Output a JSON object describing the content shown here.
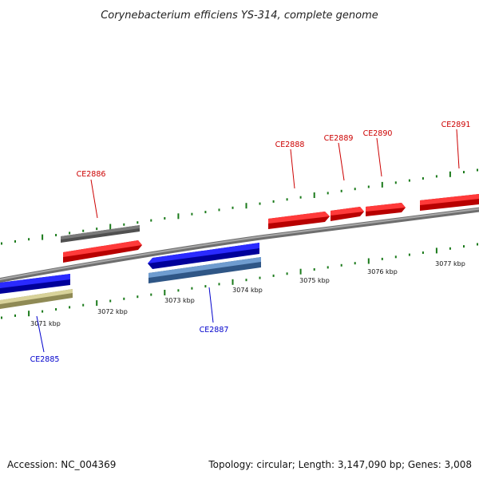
{
  "title": "Corynebacterium efficiens YS-314, complete genome",
  "footer": {
    "accession": "Accession: NC_004369",
    "summary": "Topology: circular; Length: 3,147,090 bp; Genes: 3,008"
  },
  "colors": {
    "backbone": "#808080",
    "tick": "#1a7a1a",
    "forward_label": "#cc0000",
    "reverse_label": "#0000cc",
    "red": "#e81010",
    "grey": "#6e6e6e",
    "blue": "#1010e0",
    "steelblue": "#4f7fb6",
    "khaki": "#c2bc80"
  },
  "kbp_labels": [
    "3071 kbp",
    "3072 kbp",
    "3073 kbp",
    "3074 kbp",
    "3075 kbp",
    "3076 kbp",
    "3077 kbp"
  ],
  "forward_labels": [
    "CE2886",
    "CE2888",
    "CE2889",
    "CE2890",
    "CE2891"
  ],
  "reverse_labels": [
    "CE2885",
    "CE2887"
  ]
}
